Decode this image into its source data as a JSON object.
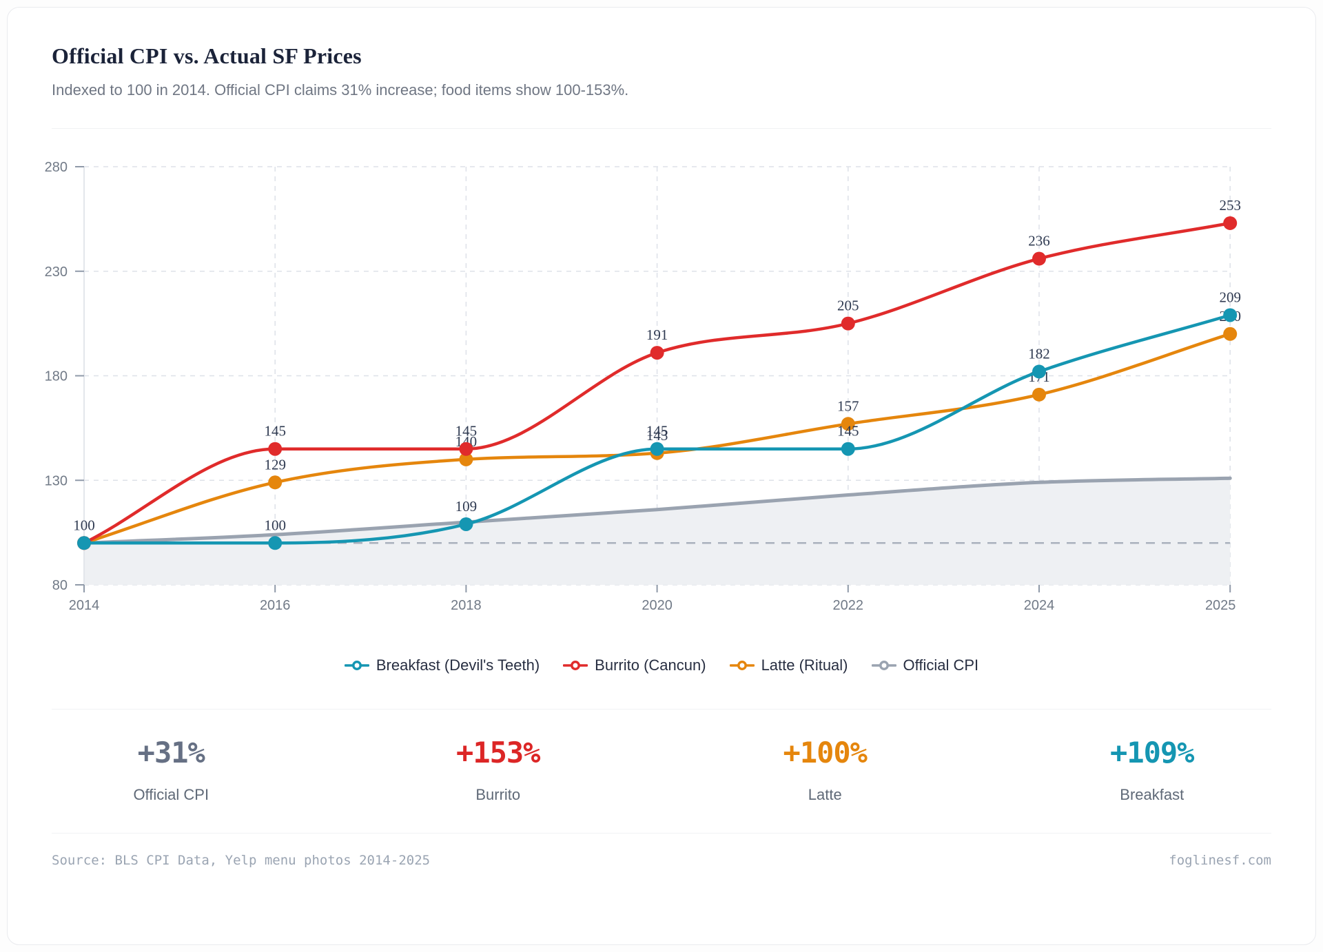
{
  "header": {
    "title": "Official CPI vs. Actual SF Prices",
    "subtitle": "Indexed to 100 in 2014. Official CPI claims 31% increase; food items show 100-153%."
  },
  "chart_data": {
    "type": "line",
    "title": "Official CPI vs. Actual SF Prices",
    "x_labels": [
      "2014",
      "2016",
      "2018",
      "2020",
      "2022",
      "2024",
      "2025"
    ],
    "x_scale": "categorical-even-spacing",
    "ylim": [
      80,
      280
    ],
    "yticks": [
      80,
      130,
      180,
      230,
      280
    ],
    "baseline_value": 100,
    "grid": "dashed",
    "legend_position": "bottom",
    "series": [
      {
        "name": "Latte (Ritual)",
        "color": "#e5860d",
        "style": "line",
        "values": [
          100,
          129,
          140,
          143,
          157,
          171,
          200
        ],
        "point_labels": [
          "",
          "129",
          "140",
          "143",
          "157",
          "171",
          "200"
        ]
      },
      {
        "name": "Burrito (Cancun)",
        "color": "#e02b2b",
        "style": "line",
        "values": [
          100,
          145,
          145,
          191,
          205,
          236,
          253
        ],
        "point_labels": [
          "",
          "145",
          "145",
          "191",
          "205",
          "236",
          "253"
        ]
      },
      {
        "name": "Breakfast (Devil's Teeth)",
        "color": "#1596b2",
        "style": "line",
        "values": [
          100,
          100,
          109,
          145,
          145,
          182,
          209
        ],
        "point_labels": [
          "100",
          "100",
          "109",
          "145",
          "145",
          "182",
          "209"
        ]
      },
      {
        "name": "Official CPI",
        "color": "#9aa3b0",
        "fill_color": "#eef0f3",
        "style": "area",
        "values": [
          100,
          104,
          110,
          116,
          123,
          129,
          131
        ],
        "point_labels": [
          "",
          "",
          "",
          "",
          "",
          "",
          ""
        ]
      }
    ],
    "legend": [
      {
        "label": "Breakfast (Devil's Teeth)",
        "color": "#1596b2"
      },
      {
        "label": "Burrito (Cancun)",
        "color": "#e02b2b"
      },
      {
        "label": "Latte (Ritual)",
        "color": "#e5860d"
      },
      {
        "label": "Official CPI",
        "color": "#9aa3b0"
      }
    ],
    "axis_colors": {
      "tick_text": "#717a87",
      "grid": "#dde1e8",
      "baseline_dash": "#a9b1bd",
      "axis_line": "#e3e6eb",
      "tick_mark": "#8f99a8",
      "point_label": "#2e3950"
    }
  },
  "stats": [
    {
      "value": "+31%",
      "label": "Official CPI",
      "color": "#667084"
    },
    {
      "value": "+153%",
      "label": "Burrito",
      "color": "#dc2626"
    },
    {
      "value": "+100%",
      "label": "Latte",
      "color": "#e5860d"
    },
    {
      "value": "+109%",
      "label": "Breakfast",
      "color": "#1596b2"
    }
  ],
  "footer": {
    "source": "Source: BLS CPI Data, Yelp menu photos 2014-2025",
    "site": "foglinesf.com"
  }
}
